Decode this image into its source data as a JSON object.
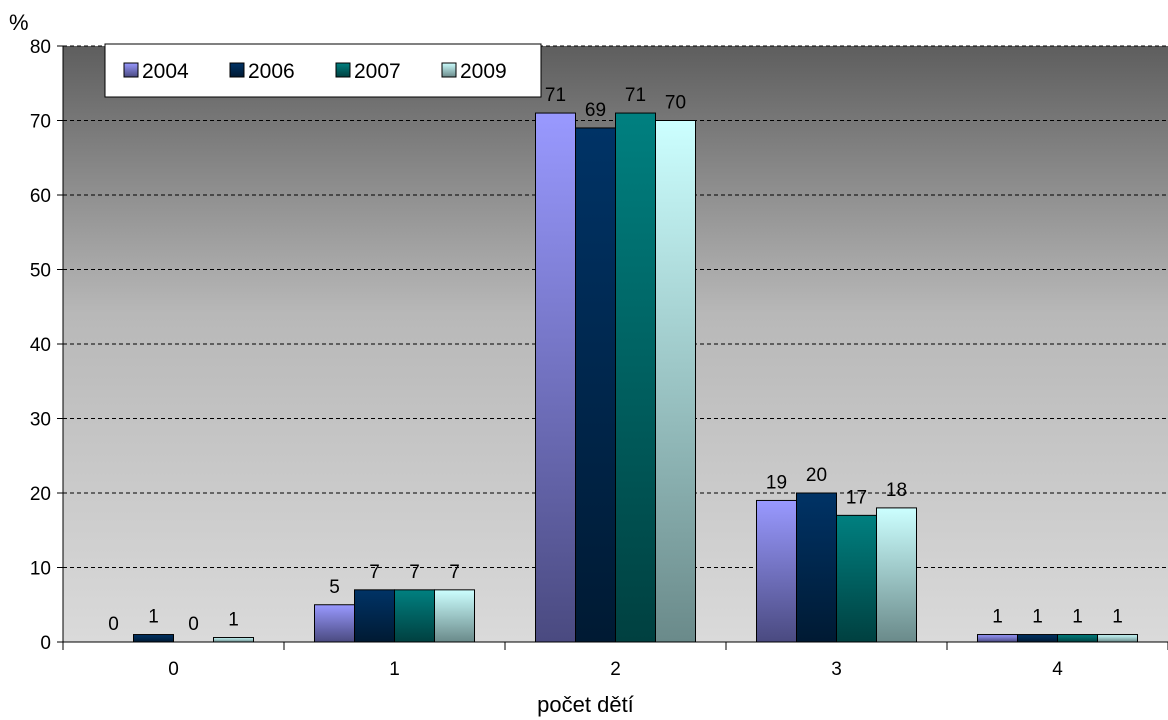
{
  "chart_data": {
    "type": "bar",
    "xlabel": "počet dětí",
    "ylabel": "%",
    "categories": [
      "0",
      "1",
      "2",
      "3",
      "4"
    ],
    "series": [
      {
        "name": "2004",
        "values": [
          0,
          5,
          71,
          19,
          1
        ],
        "labels": [
          "0",
          "5",
          "71",
          "19",
          "1"
        ],
        "color": "#9999ff",
        "color_dark": "#4a4a80"
      },
      {
        "name": "2006",
        "values": [
          1,
          7,
          69,
          20,
          1
        ],
        "labels": [
          "1",
          "7",
          "69",
          "20",
          "1"
        ],
        "color": "#003366",
        "color_dark": "#001a33"
      },
      {
        "name": "2007",
        "values": [
          0,
          7,
          71,
          17,
          1
        ],
        "labels": [
          "0",
          "7",
          "71",
          "17",
          "1"
        ],
        "color": "#008080",
        "color_dark": "#004040"
      },
      {
        "name": "2009",
        "values": [
          0.6,
          7,
          70,
          18,
          1
        ],
        "labels": [
          "1",
          "7",
          "70",
          "18",
          "1"
        ],
        "color": "#ccffff",
        "color_dark": "#6a8a8a"
      }
    ],
    "yticks": [
      "0",
      "10",
      "20",
      "30",
      "40",
      "50",
      "60",
      "70",
      "80"
    ],
    "ylim": [
      0,
      80
    ],
    "grid": true,
    "legend_position": "top-left"
  }
}
